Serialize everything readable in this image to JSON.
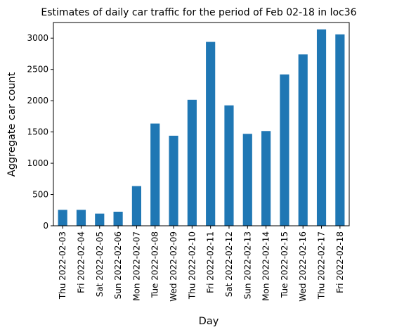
{
  "chart_data": {
    "type": "bar",
    "title": "Estimates of daily car traffic for the period of Feb 02-18 in loc36",
    "xlabel": "Day",
    "ylabel": "Aggregate car count",
    "categories": [
      "Thu 2022-02-03",
      "Fri 2022-02-04",
      "Sat 2022-02-05",
      "Sun 2022-02-06",
      "Mon 2022-02-07",
      "Tue 2022-02-08",
      "Wed 2022-02-09",
      "Thu 2022-02-10",
      "Fri 2022-02-11",
      "Sat 2022-02-12",
      "Sun 2022-02-13",
      "Mon 2022-02-14",
      "Tue 2022-02-15",
      "Wed 2022-02-16",
      "Thu 2022-02-17",
      "Fri 2022-02-18"
    ],
    "values": [
      255,
      255,
      195,
      225,
      635,
      1635,
      1440,
      2015,
      2940,
      1925,
      1470,
      1515,
      2420,
      2740,
      3140,
      3060
    ],
    "ylim": [
      0,
      3250
    ],
    "yticks": [
      0,
      500,
      1000,
      1500,
      2000,
      2500,
      3000
    ],
    "bar_color": "#1f77b4",
    "grid": false,
    "legend": "none"
  }
}
